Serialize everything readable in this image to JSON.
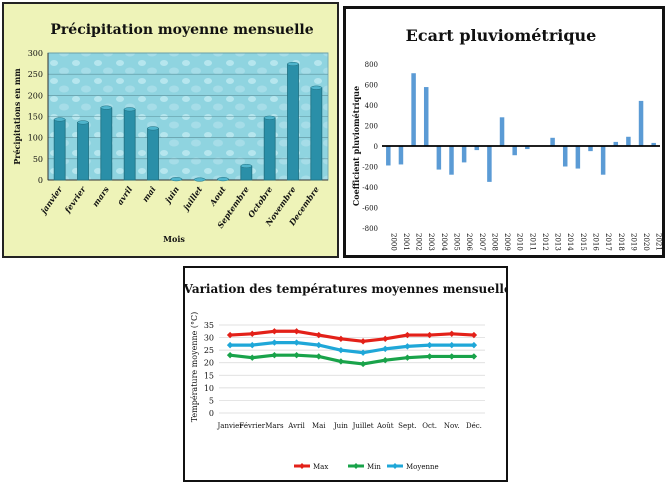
{
  "chart_data": [
    {
      "type": "bar",
      "title": "Précipitation moyenne mensuelle",
      "xlabel": "Mois",
      "ylabel": "Précipitations en mm",
      "ylim": [
        0,
        300
      ],
      "yticks": [
        0,
        50,
        100,
        150,
        200,
        250,
        300
      ],
      "categories": [
        "janvier",
        "fevrier",
        "mars",
        "avril",
        "mai",
        "juin",
        "juillet",
        "Aout",
        "Septembre",
        "Octobre",
        "Novembre",
        "Decembre"
      ],
      "values": [
        143,
        136,
        171,
        167,
        122,
        2,
        1,
        2,
        33,
        147,
        274,
        218
      ],
      "colors": {
        "bar": "#2a8fa8",
        "plot_bg": "#8fd4e0",
        "panel_bg": "#eef3b8",
        "border": "#1f6f80"
      },
      "grid": true
    },
    {
      "type": "bar",
      "title": "Ecart pluviométrique",
      "ylabel": "Coefficient pluviométrique",
      "ylim": [
        -800,
        800
      ],
      "yticks": [
        -800,
        -600,
        -400,
        -200,
        0,
        200,
        400,
        600,
        800
      ],
      "categories": [
        "2000",
        "2001",
        "2002",
        "2003",
        "2004",
        "2005",
        "2006",
        "2007",
        "2008",
        "2009",
        "2010",
        "2011",
        "2012",
        "2013",
        "2014",
        "2015",
        "2016",
        "2017",
        "2018",
        "2019",
        "2020",
        "2021"
      ],
      "values": [
        -190,
        -180,
        710,
        575,
        -230,
        -280,
        -160,
        -40,
        -350,
        280,
        -90,
        -30,
        0,
        80,
        -200,
        -220,
        -50,
        -280,
        40,
        90,
        440,
        30
      ],
      "colors": {
        "bar": "#5b9bd5"
      },
      "grid": false
    },
    {
      "type": "line",
      "title": "Variation des températures moyennes mensuelles",
      "ylabel": "Température moyenne (°C)",
      "ylim": [
        0,
        35
      ],
      "yticks": [
        0,
        5,
        10,
        15,
        20,
        25,
        30,
        35
      ],
      "categories": [
        "Janvier",
        "Février",
        "Mars",
        "Avril",
        "Mai",
        "Juin",
        "Juillet",
        "Août",
        "Sept.",
        "Oct.",
        "Nov.",
        "Déc."
      ],
      "series": [
        {
          "name": "Max",
          "values": [
            31,
            31.5,
            32.5,
            32.5,
            31,
            29.5,
            28.5,
            29.5,
            31,
            31,
            31.5,
            31
          ],
          "color": "#e32119"
        },
        {
          "name": "Min",
          "values": [
            23,
            22,
            23,
            23,
            22.5,
            20.5,
            19.5,
            21,
            22,
            22.5,
            22.5,
            22.5
          ],
          "color": "#19a34a"
        },
        {
          "name": "Moyenne",
          "values": [
            27,
            27,
            28,
            28,
            27,
            25,
            24,
            25.5,
            26.5,
            27,
            27,
            27
          ],
          "color": "#1fa7d8"
        }
      ],
      "legend_position": "bottom",
      "grid": true
    }
  ]
}
